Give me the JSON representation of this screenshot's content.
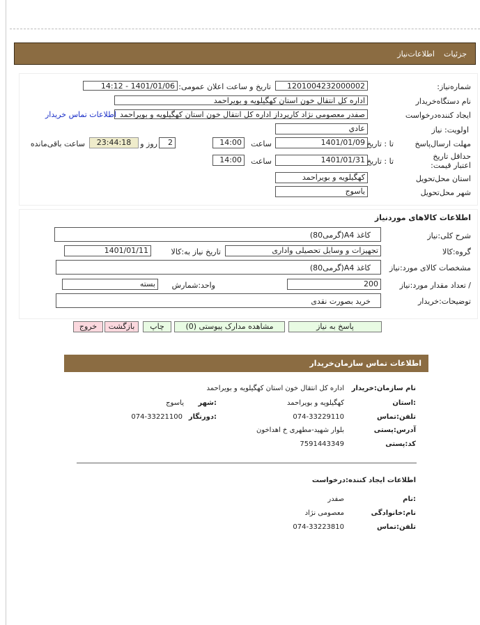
{
  "header": {
    "tabs": [
      "جزئیات",
      "اطلاعات‌نیاز"
    ],
    "color": "#8b6c42"
  },
  "need": {
    "number_label": "شماره‌نیاز:",
    "number": "1201004232000002",
    "announce_label": "تاریخ و ساعت اعلان عمومی:",
    "announce": "1401/01/06 - 14:12",
    "buyer_label": "نام دستگاه‌خریدار",
    "buyer": "اداره کل انتقال خون استان کهگیلویه و بویراحمد",
    "creator_label": "ایجاد کننده‌درخواست",
    "creator": "صفدر معصومی نژاد کارپرداز اداره کل انتقال خون استان کهگیلویه و بویراحمد",
    "contact_link": "اطلاعات تماس خریدار",
    "priority_label": "اولویت: نیاز",
    "priority": "عادي",
    "deadline_label": "مهلت ارسال‌پاسخ",
    "to_date": "تا : تاریخ",
    "deadline_date": "1401/01/09",
    "time_label": "ساعت",
    "deadline_time": "14:00",
    "days": "2",
    "days_label": "روز و",
    "remaining": "23:44:18",
    "remaining_label": "ساعت باقی‌مانده",
    "validity_label": "حداقل تاریخ اعتبار قیمت:",
    "validity_date": "1401/01/31",
    "validity_time": "14:00",
    "province_label": "استان محل‌تحویل",
    "province": "کهگیلویه و بویراحمد",
    "city_label": "شهر محل‌تحویل",
    "city": "یاسوج"
  },
  "goods": {
    "title": "اطلاعات کالاهای موردنیاز",
    "desc_label": "شرح کلی:نیاز",
    "desc": "کاغذ A4(گرمی80)",
    "group_label": "گروه:کالا",
    "group": "تجهیزات و وسایل تحصیلی واداری",
    "need_date_label": "تاریخ نیاز به:کالا",
    "need_date": "1401/01/11",
    "spec_label": "مشخصات کالای مورد:نیاز",
    "spec": "کاغذ A4(گرمی80)",
    "qty_label": "/ تعداد مقدار مورد:نیاز",
    "qty": "200",
    "unit_label": "واحد:شمارش",
    "unit": "بسته",
    "notes_label": "توضیحات:خریدار",
    "notes": "خرید بصورت نقدی"
  },
  "buttons": {
    "reply": "پاسخ به نیاز",
    "docs": "مشاهده مدارک پیوستی (0)",
    "print": "چاپ",
    "back": "بازگشت",
    "exit": "خروج"
  },
  "contact": {
    "title": "اطلاعات تماس سازمان‌خریدار",
    "org_label": "نام سازمان:خریدار",
    "org": "اداره کل انتقال خون استان کهگیلویه و بویراحمد",
    "province_label": ":استان",
    "province": "کهگیلویه و بویراحمد",
    "city_label": ":شهر",
    "city": "یاسوج",
    "phone_label": "تلفن:تماس",
    "phone": "074-33229110",
    "fax_label": ":دورنگار",
    "fax": "074-33221100",
    "address_label": "آدرس:پستی",
    "address": "بلوار شهید-مطهری خ‌ اهداخون",
    "postal_label": "کد:پستی",
    "postal": "7591443349"
  },
  "creator": {
    "title": "اطلاعات ایجاد کننده:درخواست",
    "name_label": ":نام",
    "name": "صفدر",
    "family_label": "نام:خانوادگی",
    "family": "معصومی نژاد",
    "phone_label": "تلفن:تماس",
    "phone": "074-33223810"
  }
}
